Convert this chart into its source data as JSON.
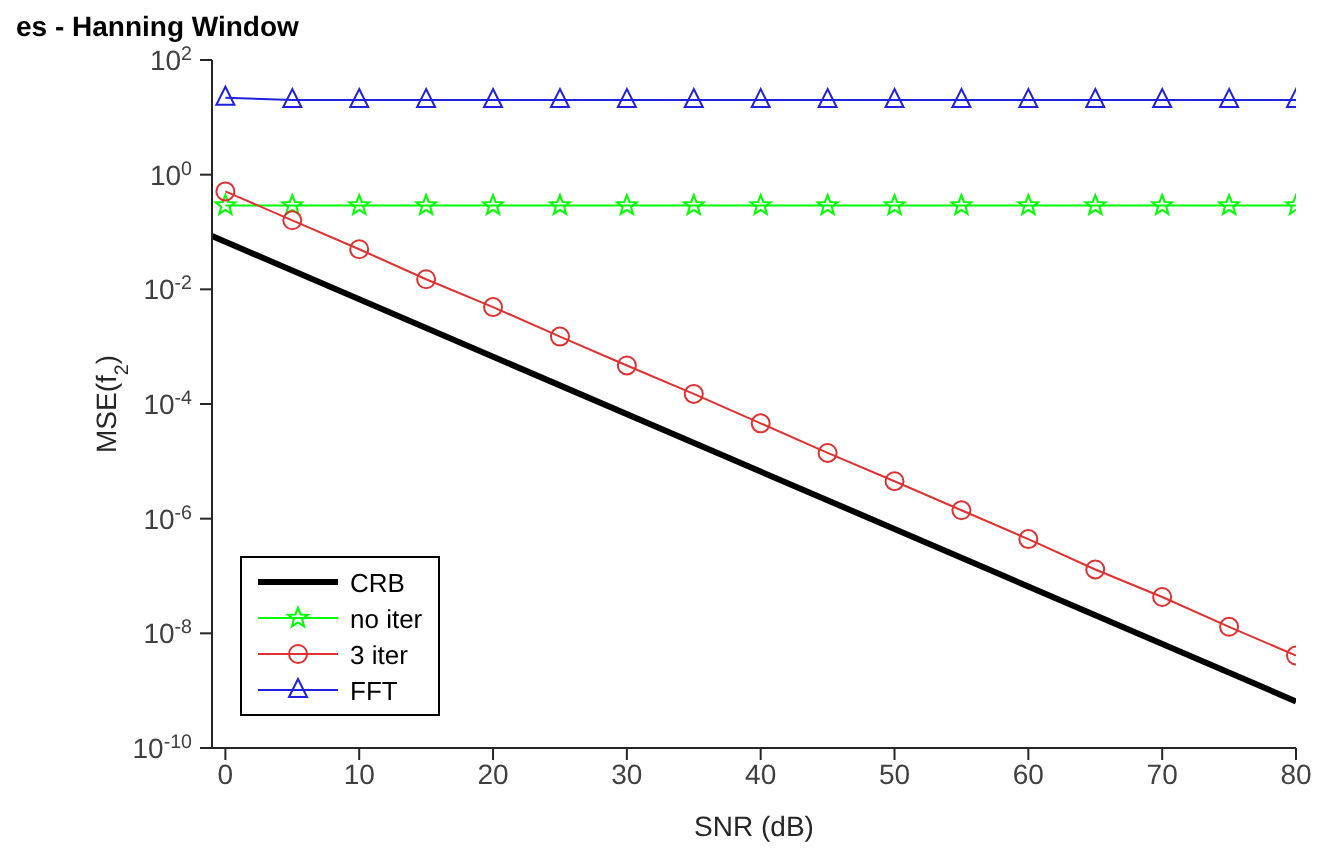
{
  "chart_data": {
    "type": "line",
    "title": "es - Hanning Window",
    "xlabel": "SNR (dB)",
    "ylabel": "MSE(f$_{2}$)",
    "log": "y",
    "xlim": [
      -1,
      80
    ],
    "xticks": [
      0,
      10,
      20,
      30,
      40,
      50,
      60,
      70,
      80
    ],
    "ylim": [
      1e-10,
      100
    ],
    "yticks": [
      {
        "value": 1e-10,
        "label": "10$^{-10}$"
      },
      {
        "value": 1e-08,
        "label": "10$^{-8}$"
      },
      {
        "value": 1e-06,
        "label": "10$^{-6}$"
      },
      {
        "value": 0.0001,
        "label": "10$^{-4}$"
      },
      {
        "value": 0.01,
        "label": "10$^{-2}$"
      },
      {
        "value": 1,
        "label": "10$^{0}$"
      },
      {
        "value": 100,
        "label": "10$^{2}$"
      }
    ],
    "grid": false,
    "legend": "bottom left",
    "series": [
      {
        "name": "CRB",
        "color": "#000000",
        "marker": "none",
        "x": [
          -1,
          80
        ],
        "values": [
          0.085,
          6.5e-10
        ]
      },
      {
        "name": "no iter",
        "color": "#00ff00",
        "marker": "star",
        "x": [
          0,
          5,
          10,
          15,
          20,
          25,
          30,
          35,
          40,
          45,
          50,
          55,
          60,
          65,
          70,
          75,
          80
        ],
        "values": [
          0.29,
          0.29,
          0.29,
          0.29,
          0.29,
          0.29,
          0.29,
          0.29,
          0.29,
          0.29,
          0.29,
          0.29,
          0.29,
          0.29,
          0.29,
          0.29,
          0.29
        ]
      },
      {
        "name": "3 iter",
        "color": "#e03030",
        "marker": "circle",
        "x": [
          0,
          5,
          10,
          15,
          20,
          25,
          30,
          35,
          40,
          45,
          50,
          55,
          60,
          65,
          70,
          75,
          80
        ],
        "values": [
          0.51,
          0.16,
          0.05,
          0.015,
          0.0049,
          0.0015,
          0.00047,
          0.00015,
          4.6e-05,
          1.4e-05,
          4.5e-06,
          1.4e-06,
          4.4e-07,
          1.3e-07,
          4.3e-08,
          1.3e-08,
          4.1e-09
        ]
      },
      {
        "name": "FFT",
        "color": "#2020e0",
        "marker": "triangle",
        "x": [
          0,
          5,
          10,
          15,
          20,
          25,
          30,
          35,
          40,
          45,
          50,
          55,
          60,
          65,
          70,
          75,
          80
        ],
        "values": [
          22,
          20,
          20,
          20,
          20,
          20,
          20,
          20,
          20,
          20,
          20,
          20,
          20,
          20,
          20,
          20,
          20
        ]
      }
    ]
  }
}
